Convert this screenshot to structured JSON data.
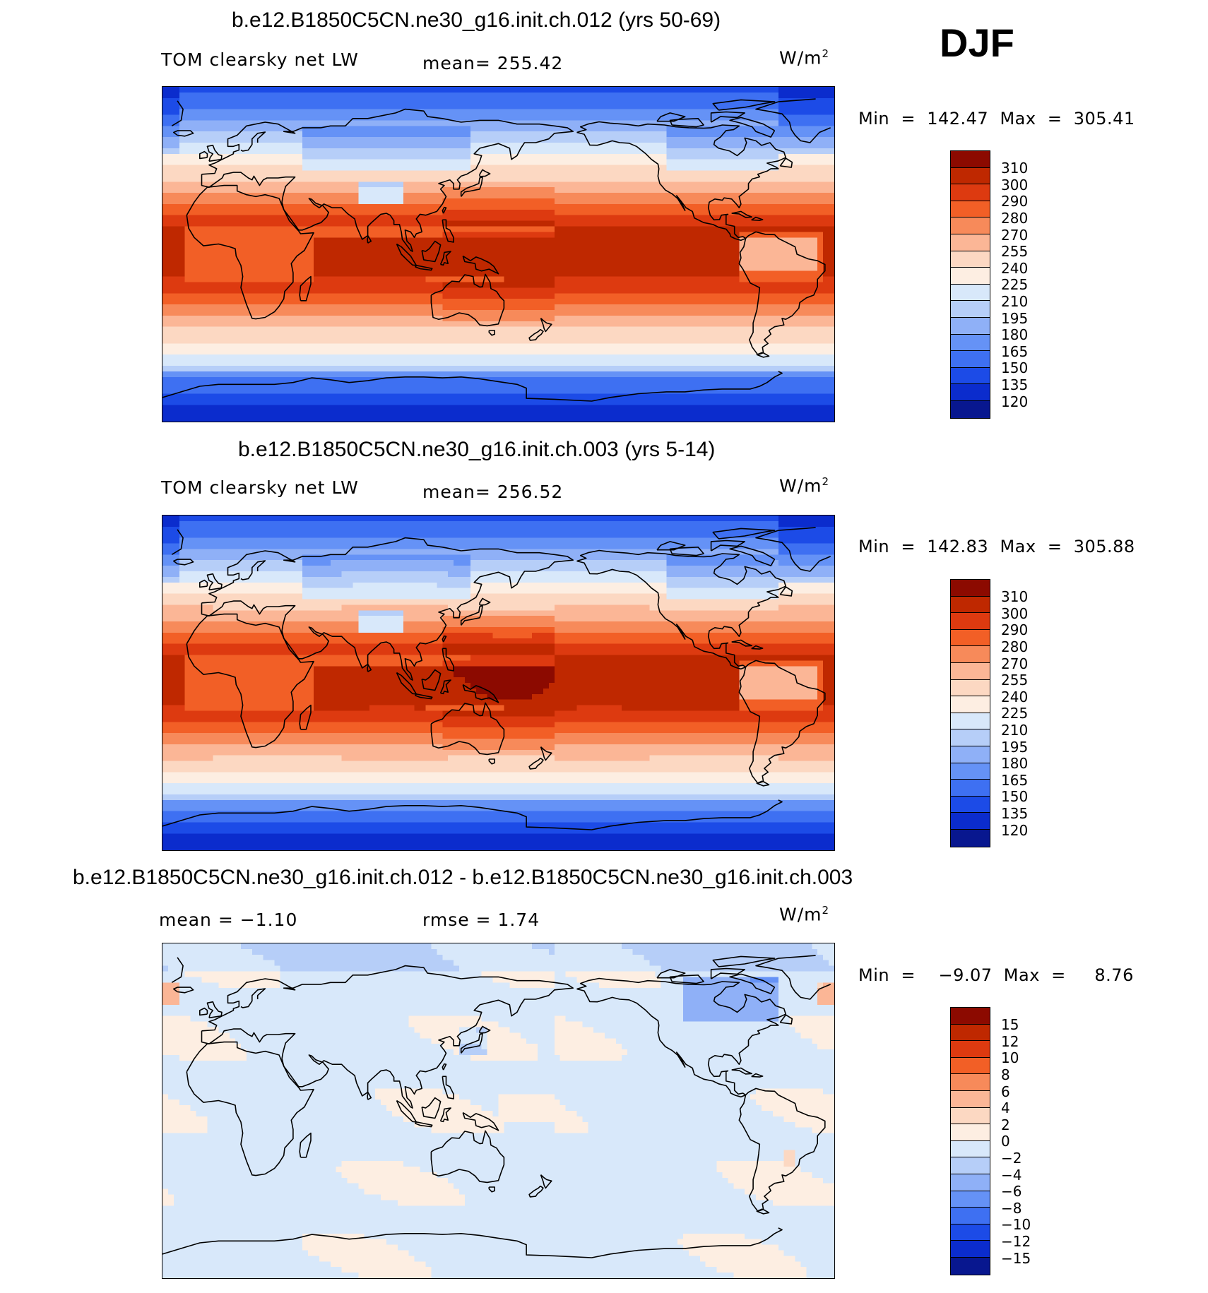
{
  "season": "DJF",
  "panels": [
    {
      "title": "b.e12.B1850C5CN.ne30_g16.init.ch.012 (yrs 50-69)",
      "left_label": "TOM clearsky net LW",
      "center_label": "mean= 255.42",
      "unit": "W/m",
      "unit_exp": "2",
      "minmax": "Min  =  142.47  Max  =  305.41"
    },
    {
      "title": "b.e12.B1850C5CN.ne30_g16.init.ch.003 (yrs 5-14)",
      "left_label": "TOM clearsky net LW",
      "center_label": "mean= 256.52",
      "unit": "W/m",
      "unit_exp": "2",
      "minmax": "Min  =  142.83  Max  =  305.88"
    },
    {
      "title": "b.e12.B1850C5CN.ne30_g16.init.ch.012 - b.e12.B1850C5CN.ne30_g16.init.ch.003",
      "left_label": "mean =   −1.10",
      "center_label": "rmse =     1.74",
      "unit": "W/m",
      "unit_exp": "2",
      "minmax": "Min  =    −9.07  Max  =     8.76"
    }
  ],
  "chart_data": [
    {
      "type": "heatmap",
      "title": "b.e12.B1850C5CN.ne30_g16.init.ch.012 (yrs 50-69)",
      "variable": "TOM clearsky net LW",
      "units": "W/m2",
      "mean": 255.42,
      "min": 142.47,
      "max": 305.41,
      "colorbar_levels": [
        "310",
        "300",
        "290",
        "280",
        "270",
        "255",
        "240",
        "225",
        "210",
        "195",
        "180",
        "165",
        "150",
        "135",
        "120"
      ],
      "colorbar_colors": [
        "#8c0a00",
        "#bf2800",
        "#dd3a10",
        "#f25f26",
        "#f78a5a",
        "#fbb696",
        "#fcd8c2",
        "#fdeee2",
        "#d8e8fa",
        "#b6cef8",
        "#8fb0f7",
        "#6592f6",
        "#3e70f2",
        "#1c4be7",
        "#0b2ccd",
        "#08178f"
      ]
    },
    {
      "type": "heatmap",
      "title": "b.e12.B1850C5CN.ne30_g16.init.ch.003 (yrs 5-14)",
      "variable": "TOM clearsky net LW",
      "units": "W/m2",
      "mean": 256.52,
      "min": 142.83,
      "max": 305.88,
      "colorbar_levels": [
        "310",
        "300",
        "290",
        "280",
        "270",
        "255",
        "240",
        "225",
        "210",
        "195",
        "180",
        "165",
        "150",
        "135",
        "120"
      ],
      "colorbar_colors": [
        "#8c0a00",
        "#bf2800",
        "#dd3a10",
        "#f25f26",
        "#f78a5a",
        "#fbb696",
        "#fcd8c2",
        "#fdeee2",
        "#d8e8fa",
        "#b6cef8",
        "#8fb0f7",
        "#6592f6",
        "#3e70f2",
        "#1c4be7",
        "#0b2ccd",
        "#08178f"
      ]
    },
    {
      "type": "heatmap",
      "title": "b.e12.B1850C5CN.ne30_g16.init.ch.012 - b.e12.B1850C5CN.ne30_g16.init.ch.003",
      "units": "W/m2",
      "mean": -1.1,
      "rmse": 1.74,
      "min": -9.07,
      "max": 8.76,
      "colorbar_levels": [
        "15",
        "12",
        "10",
        "8",
        "6",
        "4",
        "2",
        "0",
        "−2",
        "−4",
        "−6",
        "−8",
        "−10",
        "−12",
        "−15"
      ],
      "colorbar_colors": [
        "#8c0a00",
        "#bf2800",
        "#dd3a10",
        "#f25f26",
        "#f78a5a",
        "#fbb696",
        "#fcd8c2",
        "#fdeee2",
        "#d8e8fa",
        "#b6cef8",
        "#8fb0f7",
        "#6592f6",
        "#3e70f2",
        "#1c4be7",
        "#0b2ccd",
        "#08178f"
      ]
    }
  ]
}
